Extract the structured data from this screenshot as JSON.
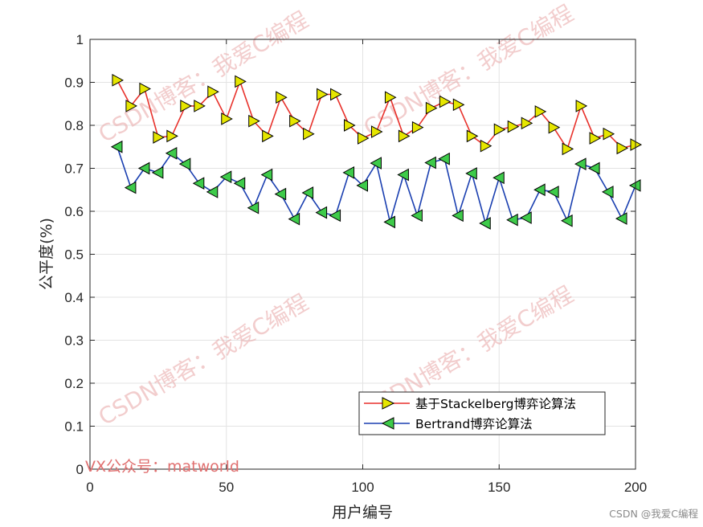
{
  "chart_data": {
    "type": "line",
    "xlabel": "用户编号",
    "ylabel": "公平度(%)",
    "xlim": [
      0,
      200
    ],
    "ylim": [
      0,
      1
    ],
    "xticks": [
      0,
      50,
      100,
      150,
      200
    ],
    "yticks": [
      0,
      0.1,
      0.2,
      0.3,
      0.4,
      0.5,
      0.6,
      0.7,
      0.8,
      0.9,
      1
    ],
    "ytick_labels": [
      "0",
      "0.1",
      "0.2",
      "0.3",
      "0.4",
      "0.5",
      "0.6",
      "0.7",
      "0.8",
      "0.9",
      "1"
    ],
    "grid": true,
    "legend_position": "bottom-right",
    "x": [
      10,
      15,
      20,
      25,
      30,
      35,
      40,
      45,
      50,
      55,
      60,
      65,
      70,
      75,
      80,
      85,
      90,
      95,
      100,
      105,
      110,
      115,
      120,
      125,
      130,
      135,
      140,
      145,
      150,
      155,
      160,
      165,
      170,
      175,
      180,
      185,
      190,
      195,
      200
    ],
    "series": [
      {
        "name": "基于Stackelberg博弈论算法",
        "color": "#e8312b",
        "marker": "triangle-right",
        "marker_color": "#e6e600",
        "values": [
          0.905,
          0.845,
          0.885,
          0.772,
          0.775,
          0.845,
          0.845,
          0.878,
          0.815,
          0.902,
          0.81,
          0.775,
          0.865,
          0.81,
          0.78,
          0.872,
          0.872,
          0.8,
          0.77,
          0.785,
          0.865,
          0.775,
          0.795,
          0.84,
          0.855,
          0.848,
          0.775,
          0.752,
          0.79,
          0.797,
          0.805,
          0.832,
          0.795,
          0.745,
          0.845,
          0.77,
          0.78,
          0.747,
          0.755
        ]
      },
      {
        "name": "Bertrand博弈论算法",
        "color": "#1a3fb0",
        "marker": "triangle-left",
        "marker_color": "#3ecb4a",
        "values": [
          0.75,
          0.655,
          0.7,
          0.69,
          0.735,
          0.71,
          0.665,
          0.645,
          0.68,
          0.665,
          0.608,
          0.685,
          0.64,
          0.582,
          0.643,
          0.597,
          0.59,
          0.69,
          0.66,
          0.712,
          0.575,
          0.685,
          0.59,
          0.713,
          0.722,
          0.59,
          0.688,
          0.572,
          0.678,
          0.58,
          0.585,
          0.65,
          0.645,
          0.578,
          0.71,
          0.7,
          0.645,
          0.583,
          0.66
        ]
      }
    ]
  },
  "watermark": "CSDN博客：我爱C编程",
  "vx_note": "VX公众号：matworld",
  "credit": "CSDN @我爱C编程"
}
